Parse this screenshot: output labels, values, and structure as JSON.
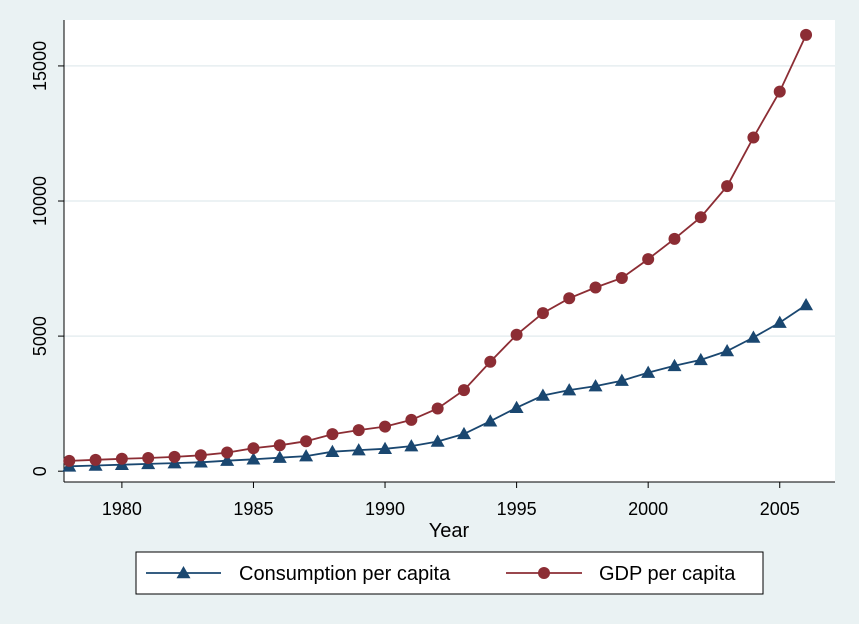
{
  "chart_data": {
    "type": "line",
    "title": "",
    "xlabel": "Year",
    "ylabel": "",
    "xlim": [
      1977.8,
      2007.1
    ],
    "ylim": [
      -400,
      16700
    ],
    "xticks": [
      1980,
      1985,
      1990,
      1995,
      2000,
      2005
    ],
    "yticks": [
      0,
      5000,
      10000,
      15000
    ],
    "grid": true,
    "legend_position": "bottom",
    "x": [
      1978,
      1979,
      1980,
      1981,
      1982,
      1983,
      1984,
      1985,
      1986,
      1987,
      1988,
      1989,
      1990,
      1991,
      1992,
      1993,
      1994,
      1995,
      1996,
      1997,
      1998,
      1999,
      2000,
      2001,
      2002,
      2003,
      2004,
      2005,
      2006
    ],
    "series": [
      {
        "name": "Consumption per capita",
        "marker": "triangle",
        "color": "#1a4770",
        "values": [
          180,
          210,
          240,
          270,
          300,
          330,
          390,
          440,
          500,
          560,
          720,
          780,
          830,
          930,
          1100,
          1380,
          1850,
          2350,
          2800,
          3000,
          3150,
          3350,
          3650,
          3900,
          4120,
          4450,
          4950,
          5500,
          6150
        ]
      },
      {
        "name": "GDP per capita",
        "marker": "circle",
        "color": "#8c2d34",
        "values": [
          380,
          420,
          460,
          490,
          530,
          590,
          690,
          850,
          960,
          1110,
          1370,
          1520,
          1650,
          1900,
          2320,
          3000,
          4050,
          5050,
          5850,
          6400,
          6800,
          7150,
          7850,
          8600,
          9400,
          10550,
          12350,
          14050,
          16150
        ]
      }
    ]
  }
}
